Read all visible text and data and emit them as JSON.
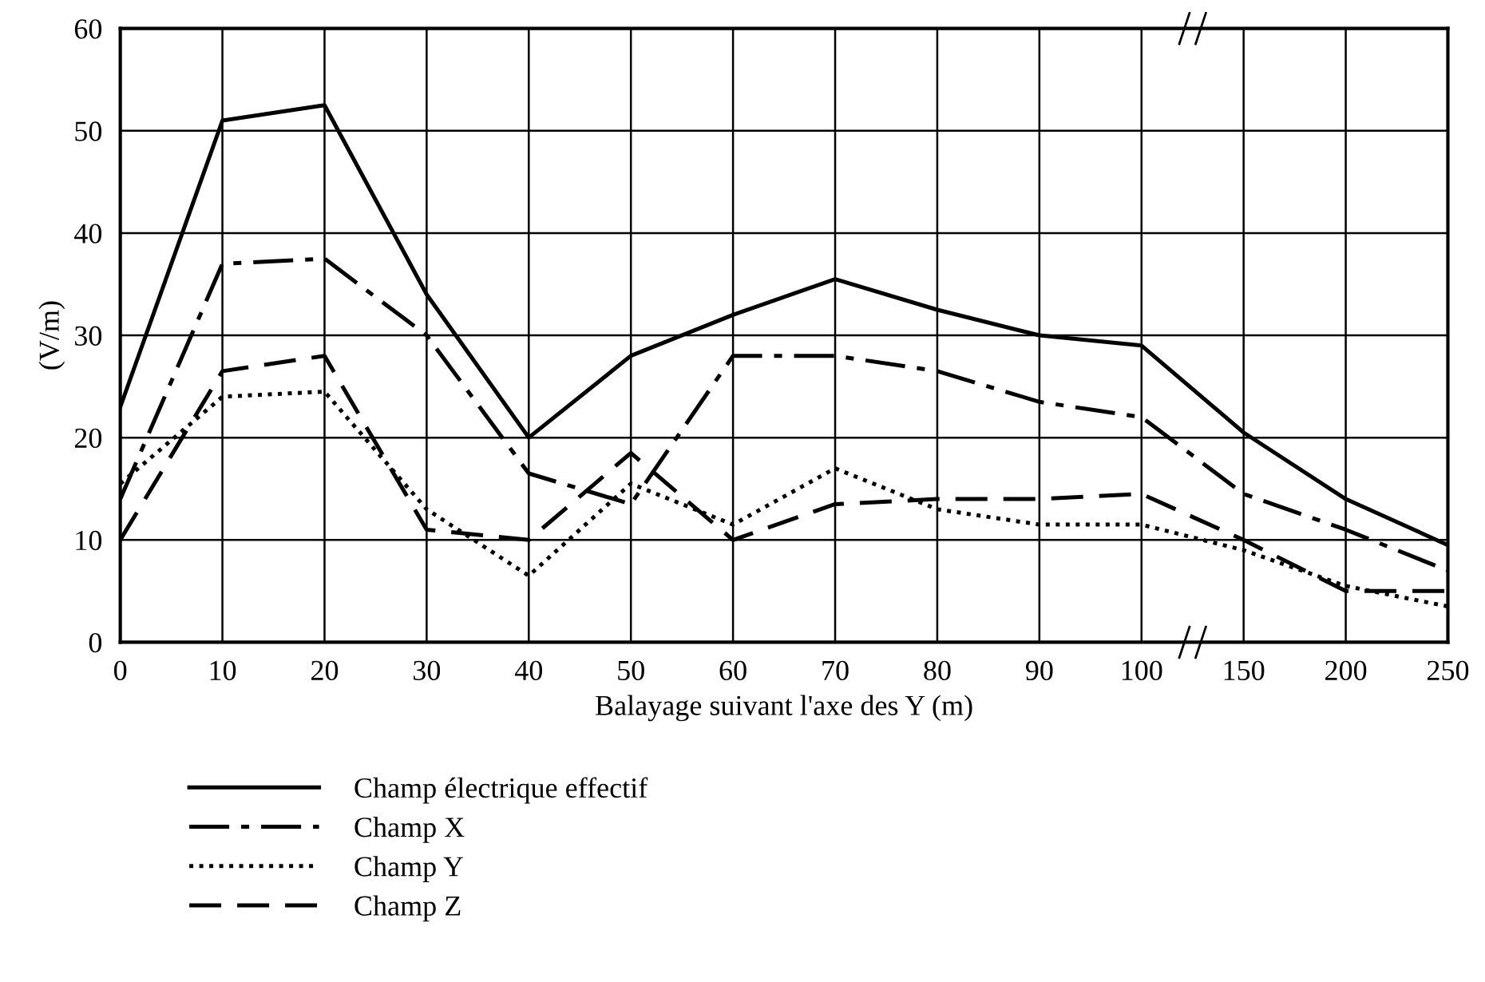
{
  "chart_data": {
    "type": "line",
    "xlabel": "Balayage suivant l'axe des Y (m)",
    "ylabel": "(V/m)",
    "categories": [
      "0",
      "10",
      "20",
      "30",
      "40",
      "50",
      "60",
      "70",
      "80",
      "90",
      "100",
      "150",
      "200",
      "250"
    ],
    "ylim": [
      0,
      60
    ],
    "yticks": [
      0,
      10,
      20,
      30,
      40,
      50,
      60
    ],
    "grid": true,
    "legend": "bottom",
    "marker": "none",
    "series": [
      {
        "name": "Champ électrique effectif",
        "color": "#000000",
        "line_style": "solid",
        "values": [
          23,
          51,
          52.5,
          34,
          20,
          28,
          32,
          35.5,
          32.5,
          30,
          29,
          20.5,
          14,
          9.5
        ]
      },
      {
        "name": "Champ X",
        "color": "#000000",
        "line_style": "dashdot",
        "values": [
          14,
          37,
          37.5,
          30,
          16.5,
          13.5,
          28,
          28,
          26.5,
          23.5,
          22,
          14.5,
          11,
          7
        ]
      },
      {
        "name": "Champ Y",
        "color": "#000000",
        "line_style": "dotted",
        "values": [
          15.5,
          24,
          24.5,
          13,
          6.5,
          15.5,
          11.5,
          17,
          13,
          11.5,
          11.5,
          9,
          5.5,
          3.5
        ]
      },
      {
        "name": "Champ Z",
        "color": "#000000",
        "line_style": "dashed",
        "values": [
          10,
          26.5,
          28,
          11,
          10,
          18.5,
          10,
          13.5,
          14,
          14,
          14.5,
          10,
          5,
          5
        ]
      }
    ]
  }
}
